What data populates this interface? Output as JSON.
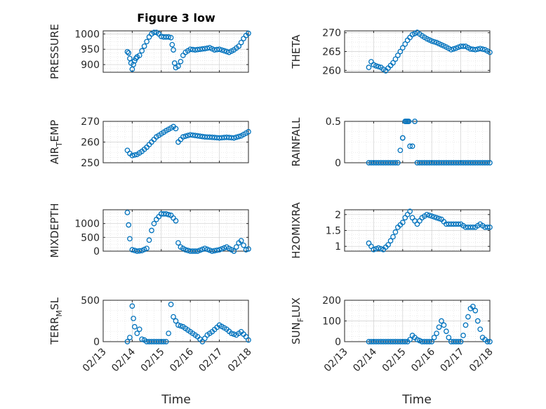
{
  "figure": {
    "title": "Figure 3 low",
    "xlabel": "Time",
    "x_ticks": [
      "02/13",
      "02/14",
      "02/15",
      "02/16",
      "02/17",
      "02/18"
    ],
    "marker_color": "#0072bd",
    "grid": true
  },
  "chart_data": [
    {
      "id": "pressure",
      "type": "scatter",
      "ylabel": "PRESSURE",
      "ylim": [
        875,
        1010
      ],
      "yticks": [
        900,
        950,
        1000
      ],
      "x": [
        "02/13 20:00",
        "02/13 21:00",
        "02/13 22:00",
        "02/13 23:00",
        "02/14 00:00",
        "02/14 01:00",
        "02/14 02:00",
        "02/14 03:00",
        "02/14 04:00",
        "02/14 06:00",
        "02/14 08:00",
        "02/14 10:00",
        "02/14 12:00",
        "02/14 14:00",
        "02/14 16:00",
        "02/14 18:00",
        "02/14 20:00",
        "02/14 22:00",
        "02/15 00:00",
        "02/15 02:00",
        "02/15 04:00",
        "02/15 06:00",
        "02/15 08:00",
        "02/15 09:00",
        "02/15 10:00",
        "02/15 11:00",
        "02/15 12:00",
        "02/15 14:00",
        "02/15 16:00",
        "02/15 18:00",
        "02/15 20:00",
        "02/16 00:00",
        "02/16 04:00",
        "02/16 08:00",
        "02/16 12:00",
        "02/16 16:00",
        "02/16 20:00",
        "02/17 00:00",
        "02/17 04:00",
        "02/17 08:00",
        "02/17 12:00",
        "02/17 16:00",
        "02/17 18:00",
        "02/17 20:00",
        "02/17 22:00",
        "02/18 00:00"
      ],
      "y": [
        942,
        938,
        920,
        905,
        885,
        900,
        912,
        920,
        925,
        930,
        945,
        960,
        975,
        990,
        1000,
        1005,
        1005,
        1000,
        992,
        990,
        990,
        990,
        988,
        965,
        948,
        905,
        890,
        895,
        910,
        930,
        940,
        950,
        948,
        950,
        952,
        955,
        948,
        950,
        945,
        940,
        948,
        960,
        972,
        985,
        995,
        1002
      ]
    },
    {
      "id": "theta",
      "type": "scatter",
      "ylabel": "THETA",
      "ylim": [
        259.5,
        270.5
      ],
      "yticks": [
        260,
        265,
        270
      ],
      "x": [
        "02/13 20:00",
        "02/13 22:00",
        "02/14 00:00",
        "02/14 02:00",
        "02/14 04:00",
        "02/14 06:00",
        "02/14 08:00",
        "02/14 10:00",
        "02/14 12:00",
        "02/14 16:00",
        "02/14 20:00",
        "02/15 00:00",
        "02/15 04:00",
        "02/15 08:00",
        "02/15 12:00",
        "02/15 16:00",
        "02/15 20:00",
        "02/16 00:00",
        "02/16 04:00",
        "02/16 08:00",
        "02/16 12:00",
        "02/16 16:00",
        "02/16 20:00",
        "02/17 00:00",
        "02/17 04:00",
        "02/17 08:00",
        "02/17 12:00",
        "02/17 16:00",
        "02/17 20:00",
        "02/18 00:00"
      ],
      "y": [
        260.8,
        262.3,
        261.5,
        261.2,
        261.0,
        260.8,
        260.3,
        259.9,
        260.6,
        262.0,
        264.0,
        266.0,
        268.0,
        269.5,
        270.1,
        269.2,
        268.4,
        267.8,
        267.4,
        266.8,
        266.2,
        265.5,
        265.9,
        266.4,
        266.4,
        265.7,
        265.5,
        265.8,
        265.5,
        264.8
      ]
    },
    {
      "id": "air_temp",
      "type": "scatter",
      "ylabel": "AIR_TEMP",
      "ylabel_display": {
        "main": "AIR",
        "sub": "T",
        "rest": "EMP"
      },
      "ylim": [
        250,
        270
      ],
      "yticks": [
        250,
        260,
        270
      ],
      "x": [
        "02/13 20:00",
        "02/13 22:00",
        "02/14 00:00",
        "02/14 04:00",
        "02/14 08:00",
        "02/14 12:00",
        "02/14 16:00",
        "02/14 20:00",
        "02/15 00:00",
        "02/15 04:00",
        "02/15 08:00",
        "02/15 10:00",
        "02/15 12:00",
        "02/15 14:00",
        "02/15 18:00",
        "02/16 00:00",
        "02/16 06:00",
        "02/16 12:00",
        "02/16 18:00",
        "02/17 00:00",
        "02/17 06:00",
        "02/17 12:00",
        "02/17 18:00",
        "02/18 00:00"
      ],
      "y": [
        256.0,
        254.5,
        253.5,
        254.0,
        255.5,
        257.5,
        260.0,
        262.5,
        264.0,
        265.5,
        266.8,
        267.5,
        266.5,
        260.0,
        262.5,
        263.5,
        263.0,
        262.5,
        262.3,
        262.0,
        262.3,
        262.0,
        263.0,
        265.0
      ]
    },
    {
      "id": "rainfall",
      "type": "scatter",
      "ylabel": "RAINFALL",
      "ylim": [
        0,
        0.5
      ],
      "yticks": [
        0,
        0.5
      ],
      "x": [
        "02/13 20:00",
        "02/14 00:00",
        "02/14 04:00",
        "02/14 08:00",
        "02/14 12:00",
        "02/14 16:00",
        "02/14 20:00",
        "02/15 00:00",
        "02/15 00:00",
        "02/15 02:00",
        "02/15 03:00",
        "02/15 04:00",
        "02/15 05:00",
        "02/15 06:00",
        "02/15 08:00",
        "02/15 10:00",
        "02/15 12:00",
        "02/15 14:00",
        "02/15 16:00",
        "02/15 20:00",
        "02/16 00:00",
        "02/16 04:00",
        "02/16 08:00",
        "02/16 12:00",
        "02/16 16:00",
        "02/16 20:00",
        "02/17 00:00",
        "02/17 04:00",
        "02/17 08:00",
        "02/17 12:00",
        "02/17 16:00",
        "02/17 20:00",
        "02/18 00:00"
      ],
      "y": [
        0,
        0,
        0,
        0,
        0,
        0,
        0,
        0.3,
        0.3,
        0.5,
        0.5,
        0.5,
        0.5,
        0.2,
        0.2,
        0.5,
        0,
        0,
        0,
        0,
        0,
        0,
        0,
        0,
        0,
        0,
        0,
        0,
        0,
        0,
        0,
        0,
        0
      ]
    },
    {
      "id": "mixdepth",
      "type": "scatter",
      "ylabel": "MIXDEPTH",
      "ylim": [
        0,
        1500
      ],
      "yticks": [
        0,
        500,
        1000
      ],
      "x": [
        "02/13 20:00",
        "02/13 21:00",
        "02/13 22:00",
        "02/14 00:00",
        "02/14 04:00",
        "02/14 08:00",
        "02/14 12:00",
        "02/14 14:00",
        "02/14 16:00",
        "02/14 18:00",
        "02/14 20:00",
        "02/14 22:00",
        "02/15 00:00",
        "02/15 04:00",
        "02/15 08:00",
        "02/15 12:00",
        "02/15 14:00",
        "02/15 16:00",
        "02/15 20:00",
        "02/16 00:00",
        "02/16 06:00",
        "02/16 12:00",
        "02/16 18:00",
        "02/17 00:00",
        "02/17 06:00",
        "02/17 12:00",
        "02/17 16:00",
        "02/17 18:00",
        "02/17 22:00",
        "02/18 00:00"
      ],
      "y": [
        1400,
        950,
        450,
        50,
        0,
        20,
        100,
        400,
        750,
        1000,
        1150,
        1250,
        1350,
        1350,
        1300,
        1100,
        300,
        150,
        50,
        0,
        0,
        100,
        0,
        50,
        150,
        0,
        300,
        380,
        50,
        80
      ]
    },
    {
      "id": "h2omixra",
      "type": "scatter",
      "ylabel": "H2OMIXRA",
      "ylim": [
        0.85,
        2.15
      ],
      "yticks": [
        1,
        1.5,
        2
      ],
      "x": [
        "02/13 20:00",
        "02/13 22:00",
        "02/14 00:00",
        "02/14 04:00",
        "02/14 08:00",
        "02/14 12:00",
        "02/14 16:00",
        "02/14 20:00",
        "02/15 00:00",
        "02/15 02:00",
        "02/15 04:00",
        "02/15 06:00",
        "02/15 08:00",
        "02/15 12:00",
        "02/15 16:00",
        "02/15 20:00",
        "02/16 00:00",
        "02/16 04:00",
        "02/16 08:00",
        "02/16 12:00",
        "02/16 16:00",
        "02/16 20:00",
        "02/17 00:00",
        "02/17 04:00",
        "02/17 08:00",
        "02/17 12:00",
        "02/17 16:00",
        "02/17 20:00",
        "02/18 00:00"
      ],
      "y": [
        1.1,
        1.0,
        0.9,
        0.95,
        0.9,
        1.05,
        1.3,
        1.6,
        1.75,
        1.9,
        2.0,
        2.1,
        1.9,
        1.7,
        1.9,
        2.0,
        1.95,
        1.9,
        1.85,
        1.7,
        1.7,
        1.7,
        1.7,
        1.6,
        1.6,
        1.6,
        1.7,
        1.6,
        1.6
      ]
    },
    {
      "id": "terr_msl",
      "type": "scatter",
      "ylabel": "TERR_MSL",
      "ylabel_display": {
        "main": "TERR",
        "sub": "M",
        "rest": "SL"
      },
      "ylim": [
        0,
        500
      ],
      "yticks": [
        0,
        500
      ],
      "x": [
        "02/13 20:00",
        "02/13 22:00",
        "02/14 00:00",
        "02/14 01:00",
        "02/14 02:00",
        "02/14 04:00",
        "02/14 06:00",
        "02/14 08:00",
        "02/14 10:00",
        "02/14 12:00",
        "02/14 16:00",
        "02/14 20:00",
        "02/15 00:00",
        "02/15 04:00",
        "02/15 06:00",
        "02/15 08:00",
        "02/15 10:00",
        "02/15 12:00",
        "02/15 14:00",
        "02/15 18:00",
        "02/16 00:00",
        "02/16 06:00",
        "02/16 10:00",
        "02/16 14:00",
        "02/16 18:00",
        "02/17 00:00",
        "02/17 06:00",
        "02/17 10:00",
        "02/17 14:00",
        "02/17 18:00",
        "02/17 22:00",
        "02/18 00:00"
      ],
      "y": [
        0,
        50,
        430,
        280,
        180,
        100,
        150,
        30,
        20,
        0,
        0,
        0,
        0,
        0,
        100,
        450,
        300,
        250,
        200,
        180,
        120,
        60,
        0,
        80,
        120,
        200,
        150,
        100,
        80,
        120,
        60,
        20
      ]
    },
    {
      "id": "sun_flux",
      "type": "scatter",
      "ylabel": "SUN_FLUX",
      "ylabel_display": {
        "main": "SUN",
        "sub": "F",
        "rest": "LUX"
      },
      "ylim": [
        0,
        200
      ],
      "yticks": [
        0,
        100,
        200
      ],
      "x": [
        "02/13 20:00",
        "02/14 00:00",
        "02/14 04:00",
        "02/14 08:00",
        "02/14 12:00",
        "02/14 16:00",
        "02/14 20:00",
        "02/15 00:00",
        "02/15 04:00",
        "02/15 06:00",
        "02/15 08:00",
        "02/15 10:00",
        "02/15 12:00",
        "02/15 16:00",
        "02/15 20:00",
        "02/16 00:00",
        "02/16 04:00",
        "02/16 06:00",
        "02/16 08:00",
        "02/16 10:00",
        "02/16 12:00",
        "02/16 14:00",
        "02/16 16:00",
        "02/16 20:00",
        "02/17 00:00",
        "02/17 02:00",
        "02/17 04:00",
        "02/17 06:00",
        "02/17 08:00",
        "02/17 10:00",
        "02/17 12:00",
        "02/17 14:00",
        "02/17 16:00",
        "02/17 18:00",
        "02/17 20:00",
        "02/17 22:00",
        "02/18 00:00"
      ],
      "y": [
        0,
        0,
        0,
        0,
        0,
        0,
        0,
        0,
        0,
        10,
        30,
        20,
        10,
        0,
        0,
        0,
        40,
        70,
        100,
        80,
        50,
        20,
        0,
        0,
        0,
        30,
        80,
        120,
        160,
        170,
        150,
        100,
        60,
        20,
        10,
        0,
        0
      ]
    }
  ]
}
